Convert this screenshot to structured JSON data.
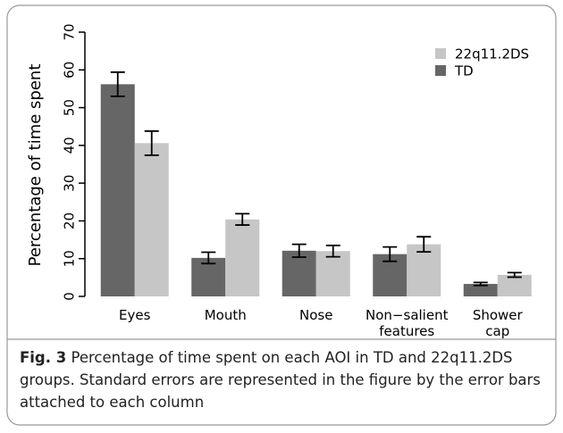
{
  "chart_data": {
    "type": "bar",
    "ylabel": "Percentage of time spent",
    "categories": [
      "Eyes",
      "Mouth",
      "Nose",
      "Non−salient\nfeatures",
      "Shower\ncap"
    ],
    "series": [
      {
        "name": "TD",
        "color": "#666666",
        "values": [
          56.2,
          10.2,
          12.1,
          11.2,
          3.3
        ],
        "errors": [
          3.2,
          1.5,
          1.7,
          1.9,
          0.4
        ]
      },
      {
        "name": "22q11.2DS",
        "color": "#c6c6c6",
        "values": [
          40.6,
          20.4,
          12.0,
          13.8,
          5.7
        ],
        "errors": [
          3.2,
          1.5,
          1.5,
          2.0,
          0.6
        ]
      }
    ],
    "ylim": [
      0,
      70
    ],
    "yticks": [
      0,
      10,
      20,
      30,
      40,
      50,
      60,
      70
    ],
    "legend": "upper right",
    "caption_label": "Fig. 3",
    "caption": "Percentage of time spent on each AOI in TD and 22q11.2DS groups. Standard errors are represented in the figure by the error bars attached to each column"
  }
}
